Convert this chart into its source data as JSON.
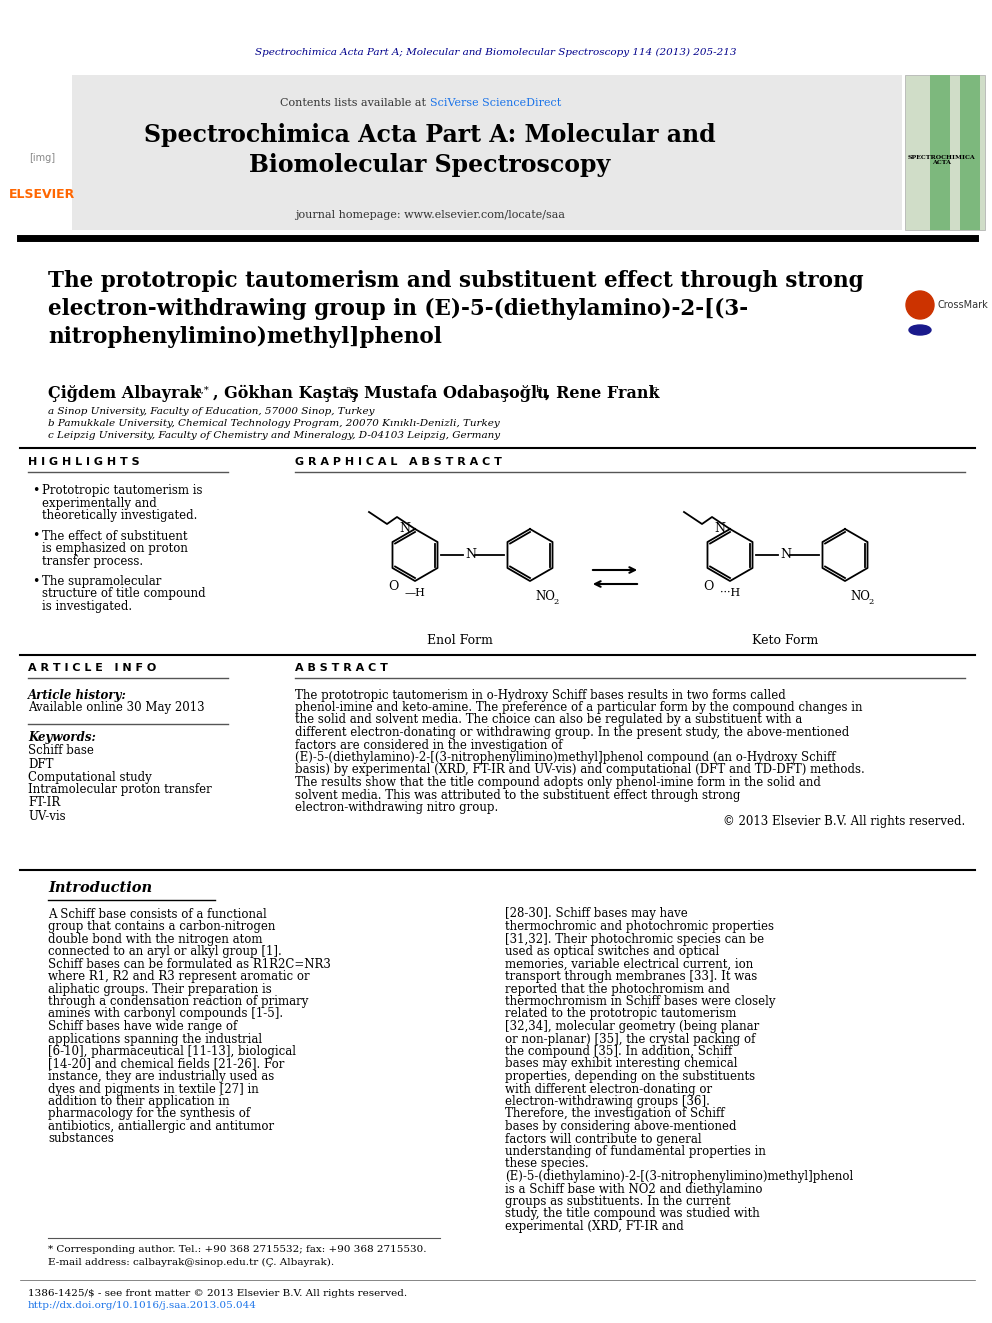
{
  "background_color": "#ffffff",
  "journal_citation": "Spectrochimica Acta Part A; Molecular and Biomolecular Spectroscopy 114 (2013) 205-213",
  "journal_citation_color": "#00008B",
  "header_bg": "#E8E8E8",
  "header_text1": "Contents lists available at ",
  "header_link": "SciVerse ScienceDirect",
  "header_link_color": "#1a73e8",
  "journal_title": "Spectrochimica Acta Part A: Molecular and\nBiomolecular Spectroscopy",
  "journal_homepage": "journal homepage: www.elsevier.com/locate/saa",
  "paper_title": "The prototropic tautomerism and substituent effect through strong\nelectron-withdrawing group in (E)-5-(diethylamino)-2-[(3-\nnitrophenylimino)methyl]phenol",
  "paper_title_color": "#000000",
  "affil1": "a Sinop University, Faculty of Education, 57000 Sinop, Turkey",
  "affil2": "b Pamukkale University, Chemical Technology Program, 20070 Kınıklı-Denizli, Turkey",
  "affil3": "c Leipzig University, Faculty of Chemistry and Mineralogy, D-04103 Leipzig, Germany",
  "highlights_title": "H I G H L I G H T S",
  "highlights": [
    "Prototropic tautomerism is experimentally and theoretically investigated.",
    "The effect of substituent is emphasized on proton transfer process.",
    "The supramolecular structure of title compound is investigated."
  ],
  "graphical_abstract_title": "G R A P H I C A L   A B S T R A C T",
  "enol_label": "Enol Form",
  "keto_label": "Keto Form",
  "article_info_title": "A R T I C L E   I N F O",
  "article_history_label": "Article history:",
  "article_history_value": "Available online 30 May 2013",
  "keywords_label": "Keywords:",
  "keywords": [
    "Schiff base",
    "DFT",
    "Computational study",
    "Intramolecular proton transfer",
    "FT-IR",
    "UV-vis"
  ],
  "abstract_title": "A B S T R A C T",
  "abstract_text": "The prototropic tautomerism in o-Hydroxy Schiff bases results in two forms called phenol-imine and keto-amine. The preference of a particular form by the compound changes in the solid and solvent media. The choice can also be regulated by a substituent with a different electron-donating or withdrawing group. In the present study, the above-mentioned factors are considered in the investigation of (E)-5-(diethylamino)-2-[(3-nitrophenylimino)methyl]phenol compound (an o-Hydroxy Schiff basis) by experimental (XRD, FT-IR and UV-vis) and computational (DFT and TD-DFT) methods. The results show that the title compound adopts only phenol-imine form in the solid and solvent media. This was attributed to the substituent effect through strong electron-withdrawing nitro group.",
  "abstract_copyright": "© 2013 Elsevier B.V. All rights reserved.",
  "intro_title": "Introduction",
  "intro_col1": "A Schiff base consists of a functional group that contains a carbon-nitrogen double bond with the nitrogen atom connected to an aryl or alkyl group [1]. Schiff bases can be formulated as R1R2C=NR3 where R1, R2 and R3 represent aromatic or aliphatic groups. Their preparation is through a condensation reaction of primary amines with carbonyl compounds [1-5]. Schiff bases have wide range of applications spanning the industrial [6-10], pharmaceutical [11-13], biological [14-20] and chemical fields [21-26]. For instance, they are industrially used as dyes and pigments in textile [27] in addition to their application in pharmacology for the synthesis of antibiotics, antiallergic and antitumor substances",
  "intro_col2": "[28-30]. Schiff bases may have thermochromic and photochromic properties [31,32]. Their photochromic species can be used as optical switches and optical memories, variable electrical current, ion transport through membranes [33]. It was reported that the photochromism and thermochromism in Schiff bases were closely related to the prototropic tautomerism [32,34], molecular geometry (being planar or non-planar) [35], the crystal packing of the compound [35]. In addition, Schiff bases may exhibit interesting chemical properties, depending on the substituents with different electron-donating or electron-withdrawing groups [36]. Therefore, the investigation of Schiff bases by considering above-mentioned factors will contribute to general understanding of fundamental properties in these species. (E)-5-(diethylamino)-2-[(3-nitrophenylimino)methyl]phenol is a Schiff base with NO2 and diethylamino groups as substituents. In the current study, the title compound was studied with experimental (XRD, FT-IR and",
  "footnote1": "* Corresponding author. Tel.: +90 368 2715532; fax: +90 368 2715530.",
  "footnote2": "E-mail address: calbayrak@sinop.edu.tr (Ç. Albayrak).",
  "footer_left": "1386-1425/$ - see front matter © 2013 Elsevier B.V. All rights reserved.",
  "footer_doi": "http://dx.doi.org/10.1016/j.saa.2013.05.044",
  "footer_doi_color": "#1a73e8",
  "elsevier_color": "#FF6600"
}
